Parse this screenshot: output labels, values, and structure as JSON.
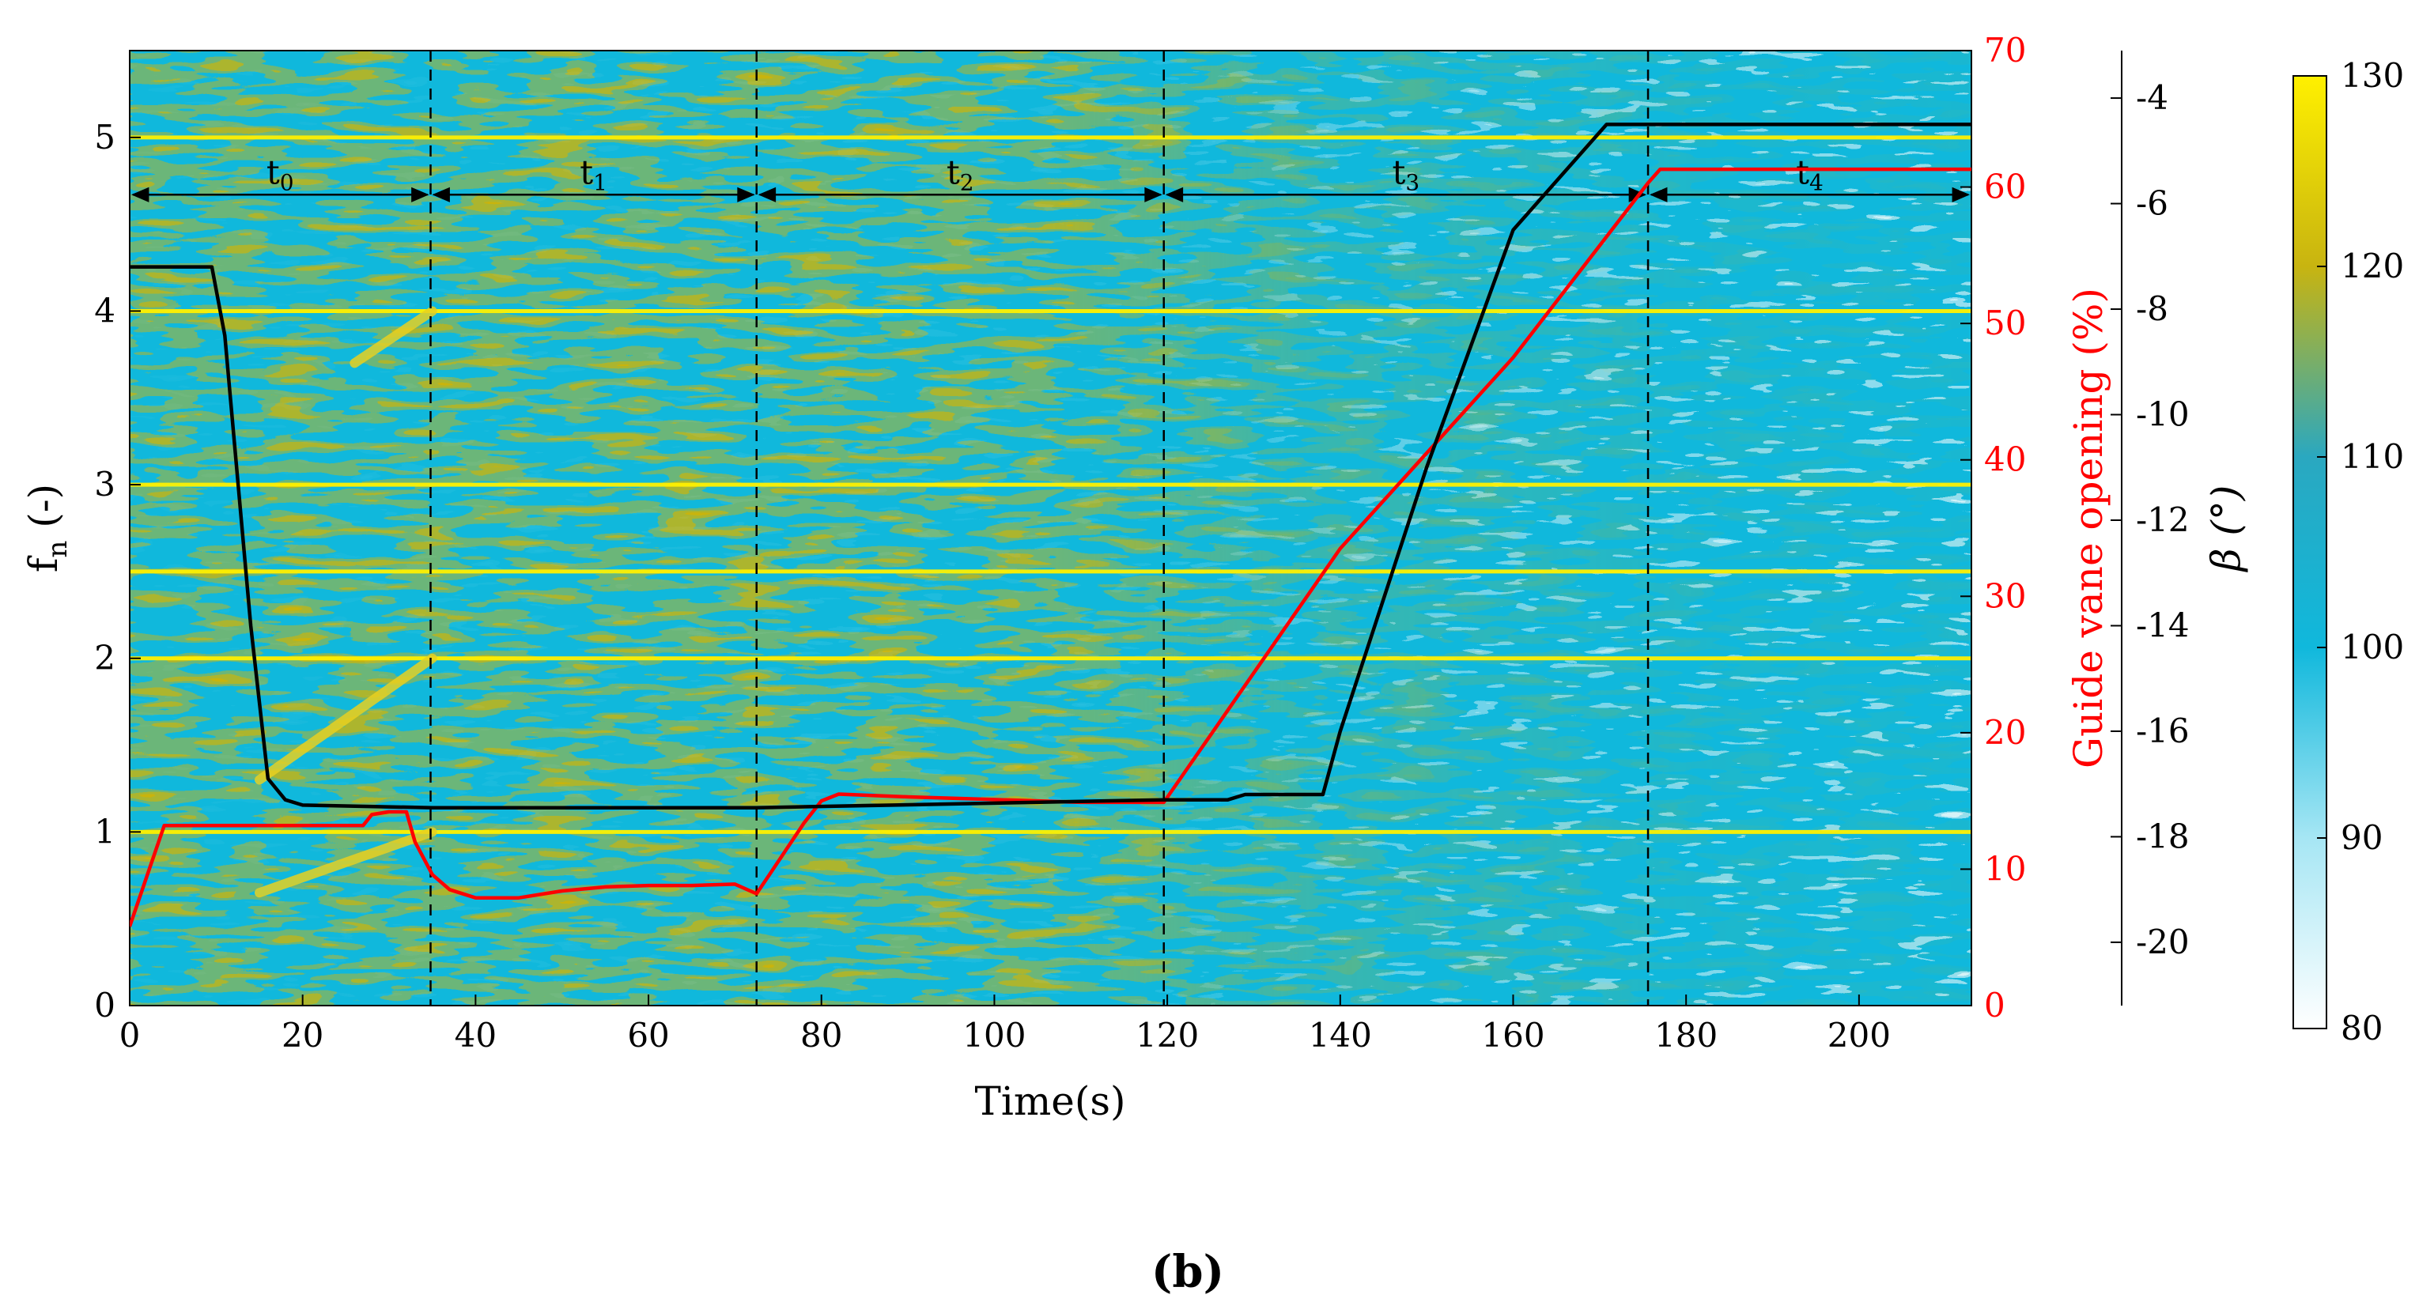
{
  "panel_label": "(b)",
  "chart_data": {
    "type": "heatmap",
    "xlabel": "Time(s)",
    "xlim": [
      0,
      213
    ],
    "x_ticks": [
      0,
      20,
      40,
      60,
      80,
      100,
      120,
      140,
      160,
      180,
      200
    ],
    "ylabel": "fn (-)",
    "ylabel_main": "f",
    "ylabel_sub": "n",
    "ylabel_suffix": " (-)",
    "ylim": [
      0,
      5.5
    ],
    "y_ticks": [
      0,
      1,
      2,
      3,
      4,
      5
    ],
    "heatmap": {
      "colormap": [
        "#ffffff",
        "#a6e6f4",
        "#10b8dc",
        "#2aa8c0",
        "#c8b410",
        "#fff000"
      ],
      "clim": [
        80,
        130
      ],
      "colorbar_ticks": [
        80,
        90,
        100,
        110,
        120,
        130
      ],
      "harmonic_lines_fn": [
        1,
        2,
        2.5,
        3,
        4,
        5
      ],
      "transition_traces": [
        {
          "t": [
            15,
            35
          ],
          "fn": [
            0.65,
            1.0
          ]
        },
        {
          "t": [
            15,
            35
          ],
          "fn": [
            1.3,
            2.0
          ]
        },
        {
          "t": [
            26,
            35
          ],
          "fn": [
            3.7,
            4.0
          ]
        }
      ]
    },
    "right_axis_1": {
      "label": "Guide vane opening (%)",
      "color": "#ff0000",
      "ylim": [
        0,
        70
      ],
      "ticks": [
        0,
        10,
        20,
        30,
        40,
        50,
        60,
        70
      ]
    },
    "right_axis_2": {
      "label": "β (°)",
      "ylim": [
        -21.2,
        -3.1
      ],
      "ticks": [
        -20,
        -18,
        -16,
        -14,
        -12,
        -10,
        -8,
        -6,
        -4
      ]
    },
    "periods": [
      {
        "name": "t",
        "sub": "0",
        "start": 0,
        "end": 34.8
      },
      {
        "name": "t",
        "sub": "1",
        "start": 34.8,
        "end": 72.5
      },
      {
        "name": "t",
        "sub": "2",
        "start": 72.5,
        "end": 119.6
      },
      {
        "name": "t",
        "sub": "3",
        "start": 119.6,
        "end": 175.6
      },
      {
        "name": "t",
        "sub": "4",
        "start": 175.6,
        "end": 213
      }
    ],
    "period_arrow_fn": 4.67,
    "dividers": [
      34.8,
      72.5,
      119.6,
      175.6
    ],
    "series": [
      {
        "name": "",
        "axis": "right_axis_1",
        "color": "#ff0000",
        "x": [
          0,
          4,
          27,
          28,
          30,
          32,
          33,
          35,
          37,
          40,
          45,
          50,
          55,
          60,
          65,
          70,
          72.5,
          74,
          76,
          78,
          80,
          82,
          90,
          100,
          110,
          119.6,
          140,
          160,
          175.6,
          177,
          190,
          213
        ],
        "y": [
          5.8,
          13.2,
          13.2,
          14.0,
          14.2,
          14.2,
          12.0,
          9.6,
          8.5,
          7.9,
          7.9,
          8.4,
          8.7,
          8.8,
          8.8,
          8.9,
          8.2,
          9.6,
          11.5,
          13.4,
          15.0,
          15.5,
          15.3,
          15.1,
          14.9,
          14.9,
          33.5,
          47.5,
          60.3,
          61.3,
          61.3,
          61.3
        ]
      },
      {
        "name": "",
        "axis": "right_axis_2",
        "color": "#000000",
        "x": [
          0,
          9.5,
          11,
          14,
          16,
          18,
          20,
          35,
          72.5,
          119.6,
          127,
          129,
          138,
          140,
          150,
          160,
          170.8,
          172,
          213
        ],
        "y": [
          -7.2,
          -7.2,
          -8.5,
          -14.0,
          -16.9,
          -17.3,
          -17.4,
          -17.45,
          -17.45,
          -17.3,
          -17.3,
          -17.2,
          -17.2,
          -16.0,
          -11.0,
          -6.5,
          -4.5,
          -4.5,
          -4.5
        ]
      }
    ]
  }
}
